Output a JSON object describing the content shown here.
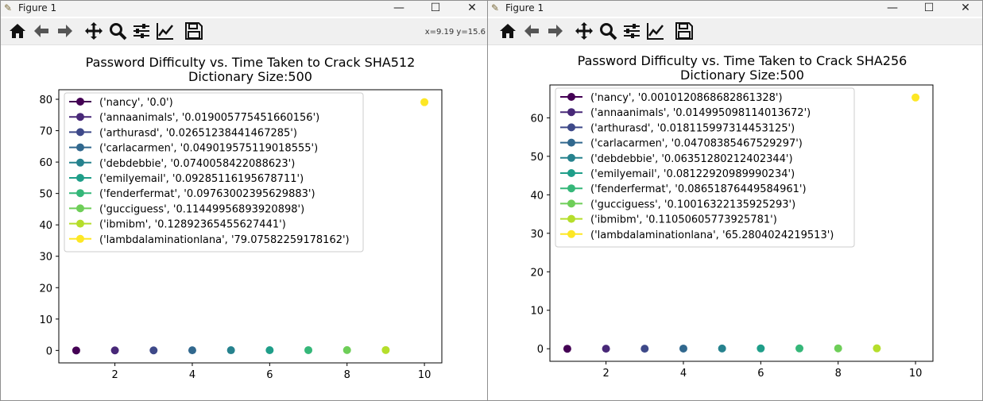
{
  "windows": [
    {
      "title": "Figure 1",
      "coords": "x=9.19 y=15.6",
      "figure": {
        "title_line1": "Password Difficulty vs. Time Taken to Crack SHA512",
        "title_line2": "Dictionary Size:500"
      }
    },
    {
      "title": "Figure 1",
      "coords": "",
      "figure": {
        "title_line1": "Password Difficulty vs. Time Taken to Crack SHA256",
        "title_line2": "Dictionary Size:500"
      }
    }
  ],
  "toolbar_icons": [
    "home-icon",
    "back-arrow-icon",
    "forward-arrow-icon",
    "pan-move-icon",
    "zoom-magnifier-icon",
    "configure-subplots-icon",
    "edit-axis-icon",
    "save-floppy-icon"
  ],
  "window_controls": [
    "minimize-icon",
    "maximize-icon",
    "close-icon"
  ],
  "chart_data": [
    {
      "type": "scatter",
      "title": "Password Difficulty vs. Time Taken to Crack SHA512\nDictionary Size:500",
      "xlabel": "",
      "ylabel": "",
      "xlim": [
        0.55,
        10.45
      ],
      "ylim": [
        -3.96,
        83.04
      ],
      "xticks": [
        2,
        4,
        6,
        8,
        10
      ],
      "yticks": [
        0,
        10,
        20,
        30,
        40,
        50,
        60,
        70,
        80
      ],
      "grid": false,
      "legend_position": "upper left",
      "colormap": "viridis",
      "series": [
        {
          "name": "('nancy', '0.0')",
          "x": 1,
          "y": 0.0,
          "color": "#440154"
        },
        {
          "name": "('annaanimals', '0.019005775451660156')",
          "x": 2,
          "y": 0.019005775451660156,
          "color": "#482878"
        },
        {
          "name": "('arthurasd', '0.02651238441467285')",
          "x": 3,
          "y": 0.02651238441467285,
          "color": "#3e4989"
        },
        {
          "name": "('carlacarmen', '0.049019575119018555')",
          "x": 4,
          "y": 0.049019575119018555,
          "color": "#31688e"
        },
        {
          "name": "('debdebbie', '0.0740058422088623')",
          "x": 5,
          "y": 0.0740058422088623,
          "color": "#26828e"
        },
        {
          "name": "('emilyemail', '0.09285116195678711')",
          "x": 6,
          "y": 0.09285116195678711,
          "color": "#1f9e89"
        },
        {
          "name": "('fenderfermat', '0.09763002395629883')",
          "x": 7,
          "y": 0.09763002395629883,
          "color": "#35b779"
        },
        {
          "name": "('gucciguess', '0.11449956893920898')",
          "x": 8,
          "y": 0.11449956893920898,
          "color": "#6ece58"
        },
        {
          "name": "('ibmibm', '0.12892365455627441')",
          "x": 9,
          "y": 0.12892365455627441,
          "color": "#b5de2b"
        },
        {
          "name": "('lambdalaminationlana', '79.07582259178162')",
          "x": 10,
          "y": 79.07582259178162,
          "color": "#fde725"
        }
      ]
    },
    {
      "type": "scatter",
      "title": "Password Difficulty vs. Time Taken to Crack SHA256\nDictionary Size:500",
      "xlabel": "",
      "ylabel": "",
      "xlim": [
        0.55,
        10.45
      ],
      "ylim": [
        -3.26,
        68.54
      ],
      "xticks": [
        2,
        4,
        6,
        8,
        10
      ],
      "yticks": [
        0,
        10,
        20,
        30,
        40,
        50,
        60
      ],
      "grid": false,
      "legend_position": "upper left",
      "colormap": "viridis",
      "series": [
        {
          "name": "('nancy', '0.0010120868682861328')",
          "x": 1,
          "y": 0.0010120868682861328,
          "color": "#440154"
        },
        {
          "name": "('annaanimals', '0.014995098114013672')",
          "x": 2,
          "y": 0.014995098114013672,
          "color": "#482878"
        },
        {
          "name": "('arthurasd', '0.018115997314453125')",
          "x": 3,
          "y": 0.018115997314453125,
          "color": "#3e4989"
        },
        {
          "name": "('carlacarmen', '0.04708385467529297')",
          "x": 4,
          "y": 0.04708385467529297,
          "color": "#31688e"
        },
        {
          "name": "('debdebbie', '0.06351280212402344')",
          "x": 5,
          "y": 0.06351280212402344,
          "color": "#26828e"
        },
        {
          "name": "('emilyemail', '0.08122920989990234')",
          "x": 6,
          "y": 0.08122920989990234,
          "color": "#1f9e89"
        },
        {
          "name": "('fenderfermat', '0.08651876449584961')",
          "x": 7,
          "y": 0.08651876449584961,
          "color": "#35b779"
        },
        {
          "name": "('gucciguess', '0.10016322135925293')",
          "x": 8,
          "y": 0.10016322135925293,
          "color": "#6ece58"
        },
        {
          "name": "('ibmibm', '0.11050605773925781')",
          "x": 9,
          "y": 0.11050605773925781,
          "color": "#b5de2b"
        },
        {
          "name": "('lambdalaminationlana', '65.2804024219513')",
          "x": 10,
          "y": 65.2804024219513,
          "color": "#fde725"
        }
      ]
    }
  ]
}
